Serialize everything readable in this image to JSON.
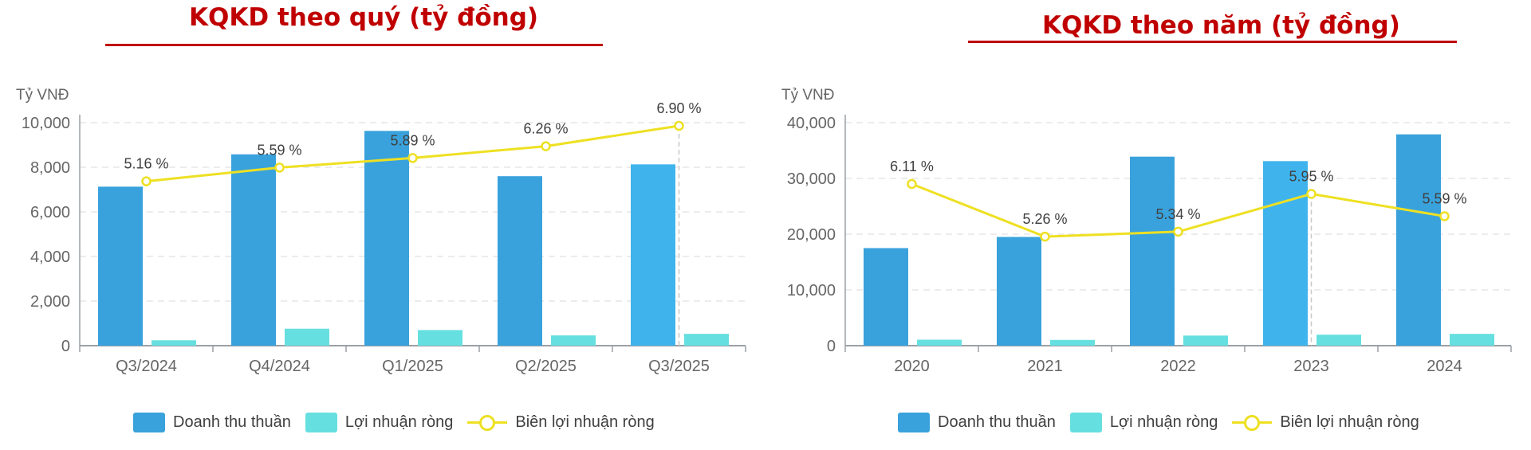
{
  "colors": {
    "title": "#c00000",
    "revenue": "#39a2dc",
    "revenue_highlight": "#3fb4ec",
    "profit": "#66dfe0",
    "margin_line": "#eee022",
    "grid": "#e6e6e6",
    "axis": "#9aa0a6",
    "tick_text": "#666666",
    "label_text": "#404040"
  },
  "legend": {
    "revenue": "Doanh thu thuần",
    "profit": "Lợi nhuận ròng",
    "margin": "Biên lợi nhuận ròng"
  },
  "chart_data": [
    {
      "type": "bar",
      "title": "KQKD theo quý (tỷ đồng)",
      "ylabel": "Tỷ VNĐ",
      "ylim": [
        0,
        10000
      ],
      "yticks": [
        0,
        2000,
        4000,
        6000,
        8000,
        10000
      ],
      "ytick_labels": [
        "0",
        "2,000",
        "4,000",
        "6,000",
        "8,000",
        "10,000"
      ],
      "categories": [
        "Q3/2024",
        "Q4/2024",
        "Q1/2025",
        "Q2/2025",
        "Q3/2025"
      ],
      "highlight_index": 4,
      "series": [
        {
          "name": "Doanh thu thuần",
          "kind": "bar",
          "values": [
            7130,
            8580,
            9630,
            7600,
            8130
          ]
        },
        {
          "name": "Lợi nhuận ròng",
          "kind": "bar",
          "values": [
            240,
            760,
            700,
            460,
            530
          ]
        },
        {
          "name": "Biên lợi nhuận ròng",
          "kind": "line",
          "values": [
            5.16,
            5.59,
            5.89,
            6.26,
            6.9
          ],
          "labels": [
            "5.16 %",
            "5.59 %",
            "5.89 %",
            "6.26 %",
            "6.90 %"
          ],
          "ylim": [
            0,
            7.0
          ]
        }
      ]
    },
    {
      "type": "bar",
      "title": "KQKD theo năm (tỷ đồng)",
      "ylabel": "Tỷ VNĐ",
      "ylim": [
        0,
        40000
      ],
      "yticks": [
        0,
        10000,
        20000,
        30000,
        40000
      ],
      "ytick_labels": [
        "0",
        "10,000",
        "20,000",
        "30,000",
        "40,000"
      ],
      "categories": [
        "2020",
        "2021",
        "2022",
        "2023",
        "2024"
      ],
      "highlight_index": 3,
      "series": [
        {
          "name": "Doanh thu thuần",
          "kind": "bar",
          "values": [
            17500,
            19500,
            33900,
            33100,
            37900
          ]
        },
        {
          "name": "Lợi nhuận ròng",
          "kind": "bar",
          "values": [
            1070,
            1030,
            1810,
            1970,
            2120
          ]
        },
        {
          "name": "Biên lợi nhuận ròng",
          "kind": "line",
          "values": [
            6.11,
            5.26,
            5.34,
            5.95,
            5.59
          ],
          "labels": [
            "6.11 %",
            "5.26 %",
            "5.34 %",
            "5.95 %",
            "5.59 %"
          ],
          "ylim": [
            3.5,
            7.1
          ]
        }
      ]
    }
  ]
}
